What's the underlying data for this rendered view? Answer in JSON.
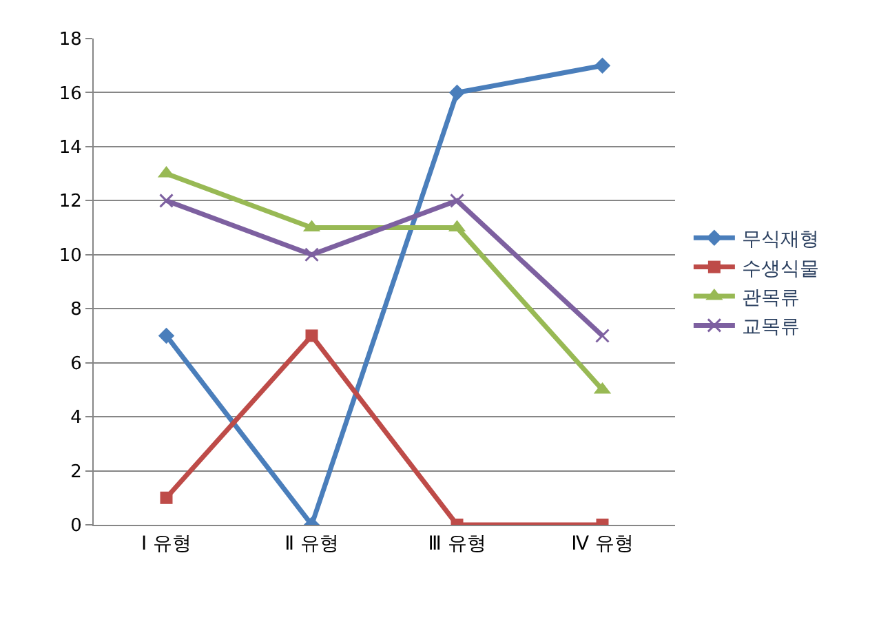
{
  "chart_data": {
    "type": "line",
    "categories": [
      "Ⅰ 유형",
      "Ⅱ 유형",
      "Ⅲ 유형",
      "Ⅳ 유형"
    ],
    "ylim": [
      0,
      18
    ],
    "yticks": [
      0,
      2,
      4,
      6,
      8,
      10,
      12,
      14,
      16,
      18
    ],
    "grid": "y",
    "legend": "right",
    "line_style": "solid",
    "series": [
      {
        "name": "무식재형",
        "color": "#4a7ebb",
        "marker": "diamond",
        "values": [
          7,
          0,
          16,
          17
        ]
      },
      {
        "name": "수생식물",
        "color": "#be4b48",
        "marker": "square",
        "values": [
          1,
          7,
          0,
          0
        ]
      },
      {
        "name": "관목류",
        "color": "#98b954",
        "marker": "triangle",
        "values": [
          13,
          11,
          11,
          5
        ]
      },
      {
        "name": "교목류",
        "color": "#7d60a0",
        "marker": "cross",
        "values": [
          12,
          10,
          12,
          7
        ]
      }
    ]
  }
}
